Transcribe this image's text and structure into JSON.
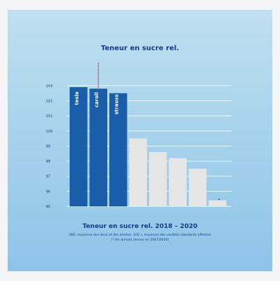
{
  "chart_data": {
    "type": "bar",
    "title": "Teneur en sucre rel.",
    "subtitle": "Teneur en sucre rel. 2018 – 2020",
    "note": "(IBS, moyenne des lieux et des années, 100 = moyenne des variétés standards offertes)\n(* bis annuel, teneur en 2007/2020)",
    "categories": [
      "tesla",
      "caroll",
      "strauss",
      "",
      "",
      "",
      "",
      "*"
    ],
    "values": [
      102.9,
      102.8,
      102.5,
      99.5,
      98.6,
      98.2,
      97.5,
      95.4
    ],
    "highlighted": [
      true,
      true,
      true,
      false,
      false,
      false,
      false,
      false
    ],
    "yticks": [
      95,
      96,
      97,
      98,
      99,
      100,
      101,
      102,
      103
    ],
    "ylim": [
      95,
      103.5
    ],
    "grid": true
  },
  "colors": {
    "highlight": "#1a5ea9",
    "other": "#e6e6e6",
    "accent": "#d0205e",
    "text": "#163a8a"
  }
}
